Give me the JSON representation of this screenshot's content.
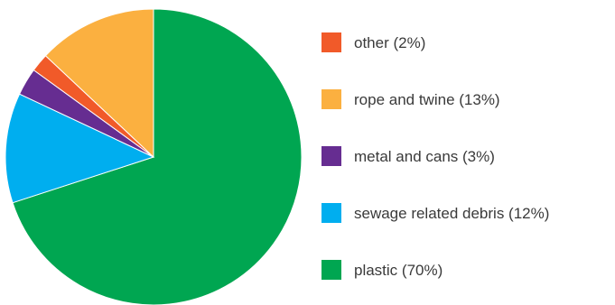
{
  "chart_data": {
    "type": "pie",
    "slices": [
      {
        "label": "plastic (70%)",
        "value": 70,
        "color": "#00a651"
      },
      {
        "label": "sewage related debris (12%)",
        "value": 12,
        "color": "#00aeef"
      },
      {
        "label": "metal and cans (3%)",
        "value": 3,
        "color": "#662d91"
      },
      {
        "label": "other (2%)",
        "value": 2,
        "color": "#f15a29"
      },
      {
        "label": "rope and twine (13%)",
        "value": 13,
        "color": "#fbb040"
      }
    ],
    "legend_order": [
      "other (2%)",
      "rope and twine (13%)",
      "metal and cans (3%)",
      "sewage related debris (12%)",
      "plastic (70%)"
    ],
    "start_angle_deg": 0,
    "direction": "clockwise",
    "legend_position": "right"
  }
}
